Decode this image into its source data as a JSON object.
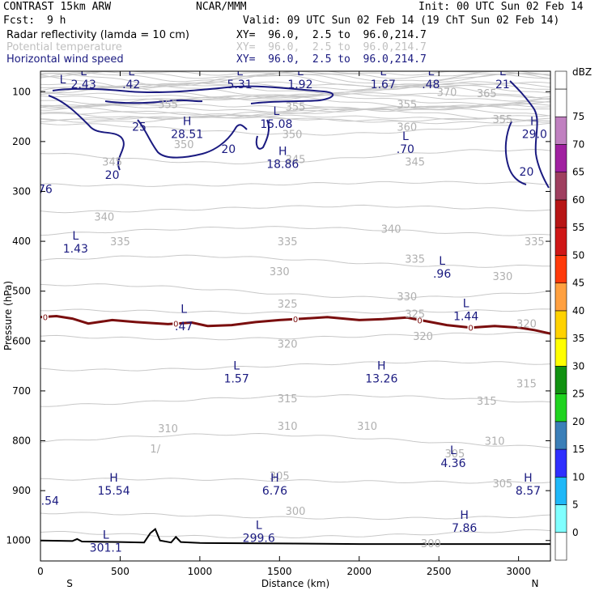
{
  "header": {
    "model": "CONTRAST 15km ARW",
    "center": "NCAR/MMM",
    "init": "Init: 00 UTC Sun 02 Feb 14",
    "fcst_label": "Fcst:",
    "fcst_value": "9 h",
    "valid": "Valid: 09 UTC Sun 02 Feb 14 (19 ChT Sun 02 Feb 14)",
    "fields": [
      {
        "name": "Radar reflectivity (lamda = 10 cm)",
        "xy": "XY=  96.0,  2.5 to  96.0,214.7",
        "color": "#000000"
      },
      {
        "name": "Potential temperature",
        "xy": "XY=  96.0,  2.5 to  96.0,214.7",
        "color": "#c0c0c0"
      },
      {
        "name": "Horizontal wind speed",
        "xy": "XY=  96.0,  2.5 to  96.0,214.7",
        "color": "#1a1a80"
      }
    ]
  },
  "chart_data": {
    "type": "cross-section",
    "xlabel": "Distance (km)",
    "ylabel": "Pressure (hPa)",
    "xlim": [
      0,
      3200
    ],
    "ylim": [
      1045,
      50
    ],
    "x_ticks": [
      0,
      500,
      1000,
      1500,
      2000,
      2500,
      3000
    ],
    "y_ticks": [
      100,
      200,
      300,
      400,
      500,
      600,
      700,
      800,
      900,
      1000
    ],
    "x_end_labels": {
      "left": "S",
      "right": "N"
    },
    "theta_labels": [
      {
        "text": "355",
        "x": 800,
        "p": 125
      },
      {
        "text": "355",
        "x": 1600,
        "p": 130
      },
      {
        "text": "355",
        "x": 2300,
        "p": 125
      },
      {
        "text": "355",
        "x": 2900,
        "p": 155
      },
      {
        "text": "370",
        "x": 2550,
        "p": 100
      },
      {
        "text": "365",
        "x": 2800,
        "p": 103
      },
      {
        "text": "360",
        "x": 2300,
        "p": 170
      },
      {
        "text": "350",
        "x": 1580,
        "p": 185
      },
      {
        "text": "350",
        "x": 900,
        "p": 205
      },
      {
        "text": "345",
        "x": 450,
        "p": 240
      },
      {
        "text": "345",
        "x": 1600,
        "p": 235
      },
      {
        "text": "345",
        "x": 2350,
        "p": 240
      },
      {
        "text": "340",
        "x": 400,
        "p": 350
      },
      {
        "text": "340",
        "x": 2200,
        "p": 375
      },
      {
        "text": "335",
        "x": 500,
        "p": 400
      },
      {
        "text": "335",
        "x": 1550,
        "p": 400
      },
      {
        "text": "335",
        "x": 2350,
        "p": 435
      },
      {
        "text": "335",
        "x": 3100,
        "p": 400
      },
      {
        "text": "330",
        "x": 1500,
        "p": 460
      },
      {
        "text": "330",
        "x": 2300,
        "p": 510
      },
      {
        "text": "330",
        "x": 2900,
        "p": 470
      },
      {
        "text": "325",
        "x": 1550,
        "p": 525
      },
      {
        "text": "325",
        "x": 2350,
        "p": 545
      },
      {
        "text": "320",
        "x": 1550,
        "p": 605
      },
      {
        "text": "320",
        "x": 2400,
        "p": 590
      },
      {
        "text": "320",
        "x": 3050,
        "p": 565
      },
      {
        "text": "315",
        "x": 1550,
        "p": 715
      },
      {
        "text": "315",
        "x": 2800,
        "p": 720
      },
      {
        "text": "315",
        "x": 3050,
        "p": 685
      },
      {
        "text": "310",
        "x": 800,
        "p": 775
      },
      {
        "text": "310",
        "x": 1550,
        "p": 770
      },
      {
        "text": "310",
        "x": 2050,
        "p": 770
      },
      {
        "text": "310",
        "x": 2850,
        "p": 800
      },
      {
        "text": "305",
        "x": 1500,
        "p": 870
      },
      {
        "text": "305",
        "x": 2600,
        "p": 825
      },
      {
        "text": "305",
        "x": 2900,
        "p": 885
      },
      {
        "text": "300",
        "x": 1600,
        "p": 940
      },
      {
        "text": "300",
        "x": 2450,
        "p": 1005
      },
      {
        "text": "1/",
        "x": 720,
        "p": 815
      }
    ],
    "wind_contours": [
      {
        "text": "25",
        "x": 620,
        "p": 170
      },
      {
        "text": "20",
        "x": 1180,
        "p": 215
      },
      {
        "text": "20",
        "x": 450,
        "p": 267
      },
      {
        "text": "20",
        "x": 3050,
        "p": 260
      }
    ],
    "wind_extrema": [
      {
        "kind": "L",
        "value": "2.43",
        "x": 270,
        "p": 70
      },
      {
        "kind": "L",
        "value": ".42",
        "x": 570,
        "p": 70
      },
      {
        "kind": "L",
        "value": "5.31",
        "x": 1250,
        "p": 70
      },
      {
        "kind": "L",
        "value": "1.92",
        "x": 1630,
        "p": 70
      },
      {
        "kind": "L",
        "value": "1.67",
        "x": 2150,
        "p": 70
      },
      {
        "kind": "L",
        "value": ".48",
        "x": 2450,
        "p": 70
      },
      {
        "kind": "L",
        "value": "21",
        "x": 2900,
        "p": 70
      },
      {
        "kind": "H",
        "value": "28.51",
        "x": 920,
        "p": 170
      },
      {
        "kind": "L",
        "value": "15.08",
        "x": 1480,
        "p": 150
      },
      {
        "kind": "H",
        "value": "18.86",
        "x": 1520,
        "p": 230
      },
      {
        "kind": "L",
        "value": ".70",
        "x": 2290,
        "p": 200
      },
      {
        "kind": "H",
        "value": "29.0",
        "x": 3100,
        "p": 170
      },
      {
        "kind": "L",
        "value": "1.43",
        "x": 220,
        "p": 400
      },
      {
        "kind": "L",
        "value": ".96",
        "x": 2520,
        "p": 450
      },
      {
        "kind": "L",
        "value": "1.44",
        "x": 2670,
        "p": 535
      },
      {
        "kind": "L",
        "value": "1.57",
        "x": 1230,
        "p": 660
      },
      {
        "kind": "H",
        "value": "13.26",
        "x": 2140,
        "p": 660
      },
      {
        "kind": "L",
        "value": "4.36",
        "x": 2590,
        "p": 830
      },
      {
        "kind": "H",
        "value": "15.54",
        "x": 460,
        "p": 885
      },
      {
        "kind": "H",
        "value": "6.76",
        "x": 1470,
        "p": 885
      },
      {
        "kind": "H",
        "value": "8.57",
        "x": 3060,
        "p": 885
      },
      {
        "kind": "H",
        "value": "7.86",
        "x": 2660,
        "p": 960
      },
      {
        "kind": "L",
        "value": "299.6",
        "x": 1370,
        "p": 980
      },
      {
        "kind": "L",
        "value": "301.1",
        "x": 410,
        "p": 1000
      }
    ],
    "edge_labels": [
      {
        "text": "76",
        "x": 30,
        "p": 295
      },
      {
        "text": ".54",
        "x": 60,
        "p": 920
      },
      {
        "text": "L",
        "x": 140,
        "p": 75
      },
      {
        "text": ".47",
        "x": 900,
        "p": 570
      },
      {
        "text": "L",
        "x": 900,
        "p": 535
      }
    ],
    "freezing_level": {
      "label": "0",
      "x": [
        0,
        100,
        200,
        300,
        450,
        600,
        800,
        950,
        1050,
        1200,
        1350,
        1500,
        1650,
        1800,
        2000,
        2150,
        2300,
        2450,
        2550,
        2700,
        2850,
        3000,
        3100,
        3200
      ],
      "p": [
        552,
        550,
        555,
        565,
        558,
        562,
        566,
        563,
        570,
        568,
        562,
        558,
        555,
        552,
        558,
        556,
        553,
        562,
        568,
        573,
        570,
        573,
        578,
        585
      ],
      "label_x": [
        30,
        850,
        1600,
        2380,
        2700
      ]
    },
    "surface": {
      "x": [
        0,
        200,
        230,
        260,
        500,
        650,
        690,
        720,
        750,
        820,
        850,
        880,
        1000,
        1500,
        2000,
        2500,
        3000,
        3200
      ],
      "p": [
        1000,
        1001,
        997,
        1002,
        1003,
        1004,
        985,
        977,
        1000,
        1004,
        993,
        1003,
        1005,
        1006,
        1007,
        1007,
        1007,
        1007
      ]
    },
    "colorbar": {
      "unit": "dBZ",
      "levels": [
        "0",
        "5",
        "10",
        "15",
        "20",
        "25",
        "30",
        "35",
        "40",
        "45",
        "50",
        "55",
        "60",
        "65",
        "70",
        "75"
      ],
      "colors": [
        "#ffffff",
        "#80ffff",
        "#1fb8f8",
        "#2f2fff",
        "#3b7fb8",
        "#1fd31f",
        "#119111",
        "#ffff00",
        "#ffd200",
        "#ffa040",
        "#ff3a0a",
        "#cf1717",
        "#b71515",
        "#9f3f5f",
        "#a020a0",
        "#c080c0",
        "#ffffff"
      ]
    }
  }
}
